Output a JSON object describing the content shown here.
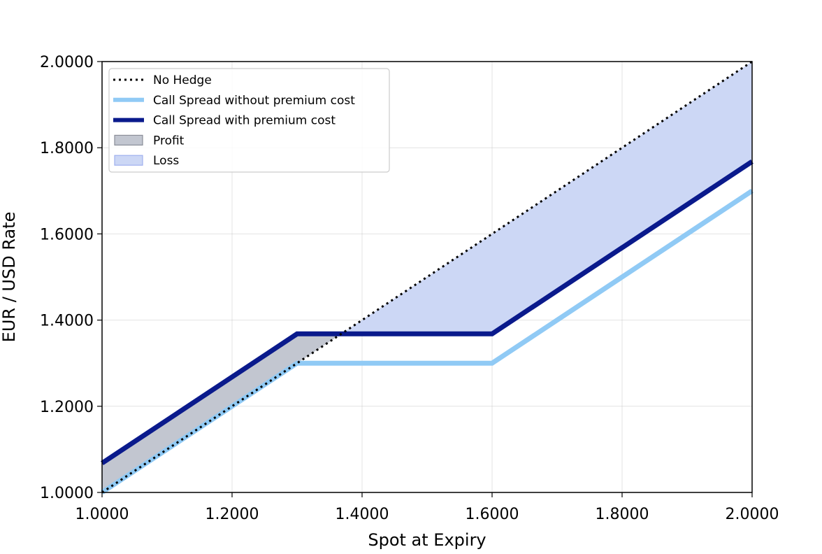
{
  "chart_data": {
    "type": "line",
    "title": "",
    "xlabel": "Spot at Expiry",
    "ylabel": "EUR / USD Rate",
    "xlim": [
      1.0,
      2.0
    ],
    "ylim": [
      1.0,
      2.0
    ],
    "x_ticks": [
      1.0,
      1.2,
      1.4,
      1.6,
      1.8,
      2.0
    ],
    "y_ticks": [
      1.0,
      1.2,
      1.4,
      1.6,
      1.8,
      2.0
    ],
    "x_tick_labels": [
      "1.0000",
      "1.2000",
      "1.4000",
      "1.6000",
      "1.8000",
      "2.0000"
    ],
    "y_tick_labels": [
      "1.0000",
      "1.2000",
      "1.4000",
      "1.6000",
      "1.8000",
      "2.0000"
    ],
    "grid": true,
    "legend_position": "top-left",
    "series": [
      {
        "name": "No Hedge",
        "style": "dotted",
        "color": "#000000",
        "x": [
          1.0,
          2.0
        ],
        "y": [
          1.0,
          2.0
        ]
      },
      {
        "name": "Call Spread without premium cost",
        "style": "solid",
        "color": "#90caf5",
        "x": [
          1.0,
          1.3,
          1.6,
          2.0
        ],
        "y": [
          1.0,
          1.3,
          1.3,
          1.7
        ]
      },
      {
        "name": "Call Spread with premium cost",
        "style": "solid",
        "color": "#0a1a8c",
        "x": [
          1.0,
          1.3,
          1.6,
          2.0
        ],
        "y": [
          1.068,
          1.368,
          1.368,
          1.768
        ]
      }
    ],
    "areas": [
      {
        "name": "Profit",
        "color": "#c2c6d0",
        "edge_color": "#8a8e98",
        "x": [
          1.0,
          1.3,
          1.368
        ],
        "upper": [
          1.068,
          1.368,
          1.368
        ],
        "lower": [
          1.0,
          1.3,
          1.368
        ]
      },
      {
        "name": "Loss",
        "color": "#ccd7f5",
        "edge_color": "#9fb0ee",
        "x": [
          1.368,
          1.6,
          2.0
        ],
        "upper": [
          1.368,
          1.6,
          2.0
        ],
        "lower": [
          1.368,
          1.368,
          1.768
        ]
      }
    ]
  }
}
